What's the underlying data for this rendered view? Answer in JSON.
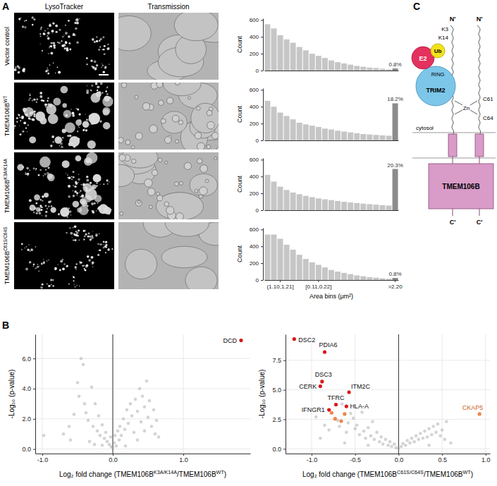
{
  "panel_labels": [
    "A",
    "B",
    "C"
  ],
  "images": {
    "headers": [
      "LysoTracker",
      "Transmission"
    ],
    "rows": [
      "Vector control",
      "TMEM106BWT",
      "TMEM106BK3A/K14A",
      "TMEM106BC61S/C64S"
    ]
  },
  "diagram": {
    "n_terms": [
      "N'",
      "N'"
    ],
    "c_terms": [
      "C'",
      "C'"
    ],
    "residues": [
      "K3",
      "K14",
      "C61",
      "C64"
    ],
    "zn": "Zn",
    "cytosol": "cytosol",
    "trim2": "TRIM2",
    "ring": "RING",
    "e2": "E2",
    "ub": "Ub",
    "tmem106b": "TMEM106B"
  },
  "chart_data": [
    {
      "type": "bar",
      "ylabel": "Count",
      "ylim": [
        0,
        620
      ],
      "yticks": [
        0,
        200,
        400,
        600
      ],
      "tick_labels": "y",
      "values": [
        550,
        500,
        420,
        370,
        330,
        280,
        240,
        200,
        175,
        150,
        120,
        100,
        85,
        70,
        55,
        45,
        35,
        30,
        22,
        15,
        25
      ],
      "colors": [
        "#c6c6c6",
        "#c6c6c6",
        "#c6c6c6",
        "#c6c6c6",
        "#c6c6c6",
        "#c6c6c6",
        "#c6c6c6",
        "#c6c6c6",
        "#c6c6c6",
        "#c6c6c6",
        "#c6c6c6",
        "#c6c6c6",
        "#c6c6c6",
        "#c6c6c6",
        "#c6c6c6",
        "#c6c6c6",
        "#c6c6c6",
        "#c6c6c6",
        "#c6c6c6",
        "#c6c6c6",
        "#8c8c8c"
      ],
      "annotations": [
        "0.8%"
      ]
    },
    {
      "type": "bar",
      "ylabel": "Count",
      "ylim": [
        0,
        620
      ],
      "yticks": [
        0,
        200,
        400,
        600
      ],
      "tick_labels": "y",
      "values": [
        470,
        400,
        330,
        290,
        250,
        210,
        190,
        175,
        160,
        140,
        130,
        115,
        105,
        95,
        85,
        75,
        70,
        65,
        60,
        55,
        440
      ],
      "colors": [
        "#c6c6c6",
        "#c6c6c6",
        "#c6c6c6",
        "#c6c6c6",
        "#c6c6c6",
        "#c6c6c6",
        "#c6c6c6",
        "#c6c6c6",
        "#c6c6c6",
        "#c6c6c6",
        "#c6c6c6",
        "#c6c6c6",
        "#c6c6c6",
        "#c6c6c6",
        "#c6c6c6",
        "#c6c6c6",
        "#c6c6c6",
        "#c6c6c6",
        "#c6c6c6",
        "#c6c6c6",
        "#8c8c8c"
      ],
      "annotations": [
        "18.2%"
      ]
    },
    {
      "type": "bar",
      "ylabel": "Count",
      "ylim": [
        0,
        620
      ],
      "yticks": [
        0,
        200,
        400,
        600
      ],
      "tick_labels": "y",
      "values": [
        420,
        340,
        280,
        240,
        210,
        190,
        170,
        155,
        140,
        130,
        120,
        110,
        100,
        92,
        85,
        78,
        72,
        66,
        60,
        55,
        490
      ],
      "colors": [
        "#c6c6c6",
        "#c6c6c6",
        "#c6c6c6",
        "#c6c6c6",
        "#c6c6c6",
        "#c6c6c6",
        "#c6c6c6",
        "#c6c6c6",
        "#c6c6c6",
        "#c6c6c6",
        "#c6c6c6",
        "#c6c6c6",
        "#c6c6c6",
        "#c6c6c6",
        "#c6c6c6",
        "#c6c6c6",
        "#c6c6c6",
        "#c6c6c6",
        "#c6c6c6",
        "#c6c6c6",
        "#8c8c8c"
      ],
      "annotations": [
        "20.3%"
      ]
    },
    {
      "type": "bar",
      "ylabel": "Count",
      "xlabel": "Area bins (μm²)",
      "ylim": [
        0,
        620
      ],
      "yticks": [
        0,
        200,
        400,
        600
      ],
      "categories": [
        null,
        null,
        "(1.10,1.21]",
        null,
        null,
        null,
        null,
        null,
        "[0.11,0.22]",
        null,
        null,
        null,
        null,
        null,
        null,
        null,
        null,
        null,
        null,
        null,
        ">2.20"
      ],
      "values": [
        540,
        540,
        490,
        420,
        360,
        300,
        250,
        210,
        180,
        150,
        120,
        100,
        85,
        70,
        55,
        45,
        35,
        28,
        20,
        15,
        25
      ],
      "colors": [
        "#c6c6c6",
        "#c6c6c6",
        "#c6c6c6",
        "#c6c6c6",
        "#c6c6c6",
        "#c6c6c6",
        "#c6c6c6",
        "#c6c6c6",
        "#c6c6c6",
        "#c6c6c6",
        "#c6c6c6",
        "#c6c6c6",
        "#c6c6c6",
        "#c6c6c6",
        "#c6c6c6",
        "#c6c6c6",
        "#c6c6c6",
        "#c6c6c6",
        "#c6c6c6",
        "#c6c6c6",
        "#8c8c8c"
      ],
      "annotations": [
        "0.8%"
      ]
    },
    {
      "type": "scatter",
      "xlabel": "Log₂ fold change (TMEM106BK3A/K14A/TMEM106BWT)",
      "ylabel": "-Log₁₀ (p-value)",
      "xlim": [
        -1.1,
        1.95
      ],
      "xticks": [
        {
          "value": -1,
          "label": "-1.0"
        },
        {
          "value": 0,
          "label": "0.0"
        },
        {
          "value": 1,
          "label": "1.0"
        }
      ],
      "ylim": [
        -0.3,
        7.6
      ],
      "yticks": [
        {
          "value": 0,
          "label": "0.0"
        },
        {
          "value": 2,
          "label": "2.0"
        },
        {
          "value": 4,
          "label": "4.0"
        },
        {
          "value": 6,
          "label": "6.0"
        }
      ],
      "grid": true,
      "vline": 0,
      "series": [
        {
          "color": "#a0a0a0",
          "x": [
            -0.98,
            -0.62,
            -0.55,
            -0.5,
            -0.45,
            -0.42,
            -0.48,
            -0.4,
            -0.38,
            -0.35,
            -0.3,
            -0.28,
            -0.25,
            -0.22,
            -0.2,
            -0.18,
            -0.15,
            -0.12,
            -0.1,
            -0.08,
            -0.05,
            -0.03,
            -0.02,
            0.0,
            0.02,
            0.03,
            0.05,
            0.07,
            0.09,
            0.1,
            0.12,
            0.15,
            0.17,
            0.2,
            0.22,
            0.25,
            0.27,
            0.3,
            0.32,
            0.35,
            0.38,
            0.4,
            0.42,
            0.45,
            0.48,
            0.5,
            0.52,
            0.55,
            0.58,
            0.6,
            0.62,
            -0.6,
            -0.7,
            -0.33,
            0.35,
            0.65,
            -0.26,
            0.18,
            -0.15,
            0.45
          ],
          "values": [
            0.9,
            1.5,
            2.3,
            4.4,
            6.0,
            5.6,
            3.5,
            3.0,
            2.4,
            1.9,
            4.1,
            1.5,
            3.0,
            1.2,
            2.2,
            0.9,
            1.6,
            0.7,
            1.1,
            0.5,
            0.3,
            0.8,
            0.15,
            0.1,
            0.4,
            0.9,
            0.2,
            1.2,
            0.6,
            1.5,
            0.9,
            2.0,
            1.3,
            2.6,
            1.7,
            3.0,
            2.2,
            1.1,
            3.3,
            2.5,
            4.0,
            1.8,
            3.5,
            2.8,
            4.5,
            2.1,
            3.2,
            1.5,
            2.6,
            1.0,
            1.9,
            0.6,
            1.0,
            0.5,
            0.6,
            0.8,
            0.3,
            0.2,
            0.25,
            1.2
          ]
        },
        {
          "color": "#d7191c",
          "x": [
            1.82
          ],
          "values": [
            7.2
          ],
          "labels": [
            "DCD"
          ]
        }
      ]
    },
    {
      "type": "scatter",
      "xlabel": "Log₂ fold change (TMEM106BC61S/C64S/TMEM106BWT)",
      "ylabel": "-Log₁₀ (p-value)",
      "xlim": [
        -1.3,
        1.05
      ],
      "xticks": [
        {
          "value": -1,
          "label": "-1.0"
        },
        {
          "value": -0.5,
          "label": "-0.5"
        },
        {
          "value": 0,
          "label": "0.0"
        },
        {
          "value": 0.5,
          "label": "0.5"
        },
        {
          "value": 1,
          "label": "1.0"
        }
      ],
      "ylim": [
        -0.4,
        9.7
      ],
      "yticks": [
        {
          "value": 0,
          "label": "0.0"
        },
        {
          "value": 2.5,
          "label": "2.5"
        },
        {
          "value": 5,
          "label": "5.0"
        },
        {
          "value": 7.5,
          "label": "7.5"
        }
      ],
      "grid": true,
      "vline": 0,
      "series": [
        {
          "color": "#a0a0a0",
          "x": [
            -1.0,
            -0.95,
            -0.85,
            -0.8,
            -0.75,
            -0.7,
            -0.68,
            -0.65,
            -0.6,
            -0.58,
            -0.55,
            -0.52,
            -0.5,
            -0.48,
            -0.45,
            -0.42,
            -0.4,
            -0.38,
            -0.35,
            -0.32,
            -0.3,
            -0.28,
            -0.25,
            -0.22,
            -0.2,
            -0.18,
            -0.15,
            -0.12,
            -0.1,
            -0.08,
            -0.05,
            -0.03,
            0.0,
            0.03,
            0.05,
            0.08,
            0.1,
            0.13,
            0.15,
            0.18,
            0.2,
            0.23,
            0.25,
            0.28,
            0.3,
            0.33,
            0.35,
            0.38,
            0.4,
            0.43,
            0.45,
            0.48,
            0.5,
            0.53,
            0.55,
            -0.9,
            -0.62,
            0.6,
            -0.35,
            0.35
          ],
          "values": [
            3.1,
            2.7,
            2.0,
            1.6,
            4.2,
            2.4,
            1.9,
            3.8,
            1.4,
            2.2,
            3.0,
            2.6,
            1.7,
            2.0,
            1.2,
            3.1,
            1.5,
            0.9,
            1.8,
            1.1,
            2.3,
            0.8,
            1.4,
            0.6,
            1.0,
            0.4,
            0.8,
            0.3,
            0.6,
            0.2,
            0.4,
            0.1,
            0.05,
            0.2,
            0.45,
            0.3,
            0.7,
            0.5,
            0.9,
            0.6,
            1.1,
            0.8,
            1.3,
            0.9,
            1.5,
            1.0,
            1.7,
            1.2,
            1.9,
            1.4,
            2.1,
            1.1,
            1.6,
            0.8,
            2.3,
            0.9,
            0.5,
            0.5,
            0.3,
            0.3
          ]
        },
        {
          "color": "#d7191c",
          "x": [
            -1.2,
            -0.85,
            -0.88,
            -0.9,
            -0.57,
            -0.72,
            -0.6,
            -0.8
          ],
          "values": [
            9.3,
            8.2,
            5.7,
            5.3,
            4.8,
            3.75,
            3.6,
            3.3
          ],
          "labels": [
            "DSC2",
            "PDIA6",
            "DSC3",
            "CERK",
            "ITM2C",
            "TFRC",
            "HLA-A",
            "IFNGR1"
          ]
        },
        {
          "color": "#f0854a",
          "x": [
            0.93,
            -0.77,
            -0.73,
            -0.66,
            -0.62
          ],
          "values": [
            2.95,
            3.05,
            2.55,
            2.35,
            2.95
          ],
          "labels": [
            "CKAP5",
            null,
            null,
            null,
            null
          ]
        }
      ]
    }
  ]
}
